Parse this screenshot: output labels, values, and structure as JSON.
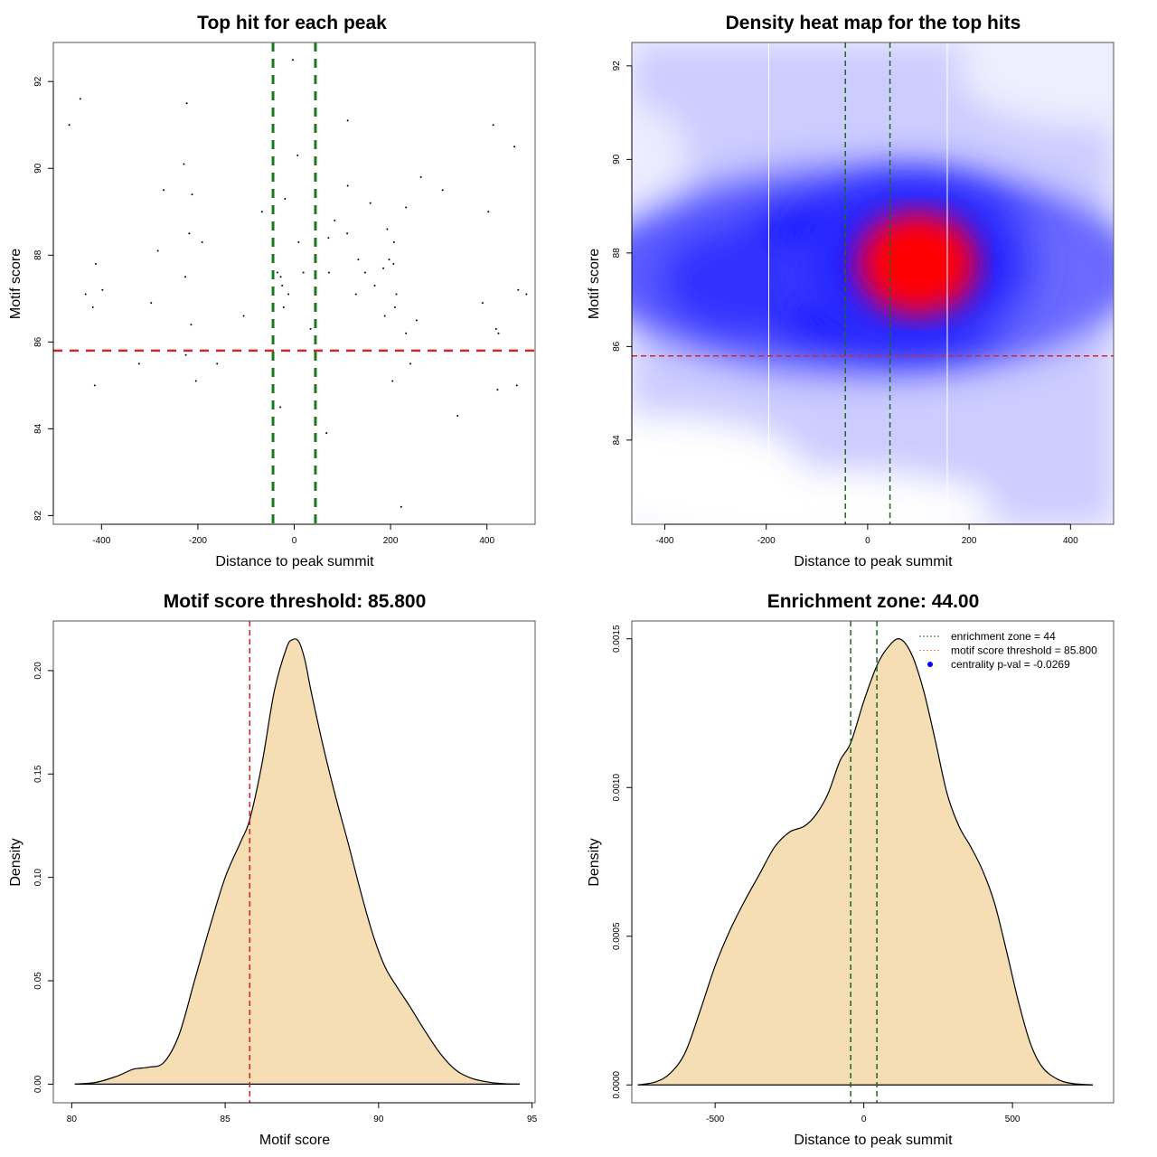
{
  "chart_data": [
    {
      "id": "scatter",
      "type": "scatter",
      "title": "Top hit for each peak",
      "xlabel": "Distance to peak summit",
      "ylabel": "Motif score",
      "xlim": [
        -500,
        500
      ],
      "ylim": [
        81.8,
        92.9
      ],
      "xticks": [
        -400,
        -200,
        0,
        200,
        400
      ],
      "xtick_labels": [
        "-400",
        "-200",
        "0",
        "200",
        "400"
      ],
      "yticks": [
        82,
        84,
        86,
        88,
        90,
        92
      ],
      "ytick_labels": [
        "82",
        "84",
        "86",
        "88",
        "90",
        "92"
      ],
      "vlines": [
        -44,
        44
      ],
      "vline_color": "#1a7a1a",
      "hline": 85.8,
      "hline_color": "#d62728",
      "points": [
        [
          -467,
          91.0
        ],
        [
          -444,
          91.6
        ],
        [
          -433,
          87.1
        ],
        [
          -418,
          86.8
        ],
        [
          -414,
          85.0
        ],
        [
          -412,
          87.8
        ],
        [
          -398,
          87.2
        ],
        [
          -322,
          85.5
        ],
        [
          -297,
          86.9
        ],
        [
          -283,
          88.1
        ],
        [
          -271,
          89.5
        ],
        [
          -229,
          90.1
        ],
        [
          -226,
          87.5
        ],
        [
          -225,
          85.7
        ],
        [
          -223,
          91.5
        ],
        [
          -218,
          88.5
        ],
        [
          -214,
          86.4
        ],
        [
          -212,
          89.4
        ],
        [
          -204,
          85.1
        ],
        [
          -191,
          88.3
        ],
        [
          -160,
          85.5
        ],
        [
          -105,
          86.6
        ],
        [
          -67,
          89.0
        ],
        [
          -3,
          92.5
        ],
        [
          7,
          90.3
        ],
        [
          9,
          88.3
        ],
        [
          19,
          87.6
        ],
        [
          -35,
          87.6
        ],
        [
          -28,
          87.5
        ],
        [
          -25,
          87.3
        ],
        [
          -22,
          86.8
        ],
        [
          -19,
          89.3
        ],
        [
          -12,
          87.1
        ],
        [
          -29,
          84.5
        ],
        [
          34,
          86.3
        ],
        [
          67,
          83.9
        ],
        [
          72,
          87.6
        ],
        [
          71,
          88.4
        ],
        [
          84,
          88.8
        ],
        [
          110,
          88.5
        ],
        [
          111,
          91.1
        ],
        [
          111,
          89.6
        ],
        [
          128,
          87.1
        ],
        [
          133,
          87.9
        ],
        [
          147,
          87.6
        ],
        [
          158,
          89.2
        ],
        [
          167,
          87.3
        ],
        [
          185,
          87.7
        ],
        [
          188,
          86.6
        ],
        [
          193,
          88.6
        ],
        [
          197,
          87.9
        ],
        [
          204,
          85.1
        ],
        [
          206,
          87.8
        ],
        [
          207,
          88.3
        ],
        [
          209,
          86.8
        ],
        [
          212,
          87.1
        ],
        [
          222,
          82.2
        ],
        [
          232,
          86.2
        ],
        [
          232,
          89.1
        ],
        [
          241,
          85.5
        ],
        [
          254,
          86.5
        ],
        [
          263,
          89.8
        ],
        [
          308,
          89.5
        ],
        [
          339,
          84.3
        ],
        [
          391,
          86.9
        ],
        [
          403,
          89.0
        ],
        [
          413,
          91.0
        ],
        [
          419,
          86.3
        ],
        [
          422,
          84.9
        ],
        [
          424,
          86.2
        ],
        [
          457,
          90.5
        ],
        [
          462,
          85.0
        ],
        [
          465,
          87.2
        ],
        [
          482,
          87.1
        ]
      ]
    },
    {
      "id": "heatmap",
      "type": "heatmap",
      "title": "Density heat map for the top hits",
      "xlabel": "Distance to peak summit",
      "ylabel": "Motif score",
      "xlim": [
        -465,
        485
      ],
      "ylim": [
        82.2,
        92.5
      ],
      "xticks": [
        -400,
        -200,
        0,
        200,
        400
      ],
      "xtick_labels": [
        "-400",
        "-200",
        "0",
        "200",
        "400"
      ],
      "yticks": [
        84,
        86,
        88,
        90,
        92
      ],
      "ytick_labels": [
        "84",
        "86",
        "88",
        "90",
        "92"
      ],
      "color_scale": [
        "#ffffff",
        "#0000ff",
        "#ff0000"
      ],
      "density_peak": {
        "x": 110,
        "y": 87.7
      },
      "white_vlines": [
        -195,
        157
      ],
      "vlines": [
        -44,
        44
      ],
      "vline_color": "#1a6a1a",
      "hline": 85.8,
      "hline_color": "#d62728"
    },
    {
      "id": "score-density",
      "type": "area",
      "title": "Motif score threshold: 85.800",
      "xlabel": "Motif score",
      "ylabel": "Density",
      "xlim": [
        79.4,
        95.1
      ],
      "ylim": [
        -0.009,
        0.224
      ],
      "xticks": [
        80,
        85,
        90,
        95
      ],
      "xtick_labels": [
        "80",
        "85",
        "90",
        "95"
      ],
      "yticks": [
        0,
        0.05,
        0.1,
        0.15,
        0.2
      ],
      "ytick_labels": [
        "0.00",
        "0.05",
        "0.10",
        "0.15",
        "0.20"
      ],
      "fill_color": "#f5deb3",
      "vline": 85.8,
      "vline_color": "#e41a1c",
      "x": [
        80.1,
        80.8,
        81.5,
        82.0,
        82.5,
        83.0,
        83.5,
        84.0,
        84.5,
        85.0,
        85.5,
        85.8,
        86.2,
        86.6,
        87.0,
        87.2,
        87.4,
        87.6,
        87.8,
        88.2,
        88.6,
        89.0,
        89.4,
        89.8,
        90.2,
        90.6,
        91.0,
        91.5,
        92.0,
        92.5,
        93.0,
        93.5,
        94.0,
        94.6
      ],
      "y": [
        0.0,
        0.0009,
        0.004,
        0.0072,
        0.0082,
        0.0105,
        0.024,
        0.05,
        0.076,
        0.1,
        0.117,
        0.128,
        0.155,
        0.19,
        0.211,
        0.215,
        0.214,
        0.205,
        0.19,
        0.163,
        0.139,
        0.117,
        0.094,
        0.073,
        0.057,
        0.047,
        0.038,
        0.026,
        0.015,
        0.007,
        0.003,
        0.0012,
        0.0003,
        0.0
      ]
    },
    {
      "id": "distance-density",
      "type": "area",
      "title": "Enrichment zone: 44.00",
      "xlabel": "Distance to peak summit",
      "ylabel": "Density",
      "xlim": [
        -780,
        840
      ],
      "ylim": [
        -6e-05,
        0.00156
      ],
      "xticks": [
        -500,
        0,
        500
      ],
      "xtick_labels": [
        "-500",
        "0",
        "500"
      ],
      "yticks": [
        0,
        0.0005,
        0.001,
        0.0015
      ],
      "ytick_labels": [
        "0.0000",
        "0.0005",
        "0.0010",
        "0.0015"
      ],
      "fill_color": "#f5deb3",
      "vlines": [
        -44,
        44
      ],
      "vline_color": "#1a6a1a",
      "x": [
        -760,
        -700,
        -650,
        -600,
        -550,
        -500,
        -450,
        -400,
        -350,
        -300,
        -250,
        -200,
        -160,
        -120,
        -80,
        -44,
        0,
        44,
        80,
        120,
        160,
        200,
        240,
        280,
        320,
        360,
        400,
        440,
        480,
        520,
        560,
        600,
        650,
        700,
        770
      ],
      "y": [
        0.0,
        1e-05,
        4e-05,
        0.00011,
        0.00025,
        0.0004,
        0.00052,
        0.00062,
        0.00071,
        0.0008,
        0.00085,
        0.00087,
        0.00091,
        0.00098,
        0.00109,
        0.00115,
        0.00129,
        0.00141,
        0.00147,
        0.0015,
        0.00145,
        0.00133,
        0.00116,
        0.00098,
        0.00087,
        0.0008,
        0.00072,
        0.00061,
        0.00045,
        0.00028,
        0.00014,
        6e-05,
        2e-05,
        5e-06,
        0.0
      ],
      "legend": {
        "position": "top-right",
        "items": [
          {
            "label": "enrichment zone = 44",
            "style": "dotted-line",
            "color": "#1a7a1a"
          },
          {
            "label": "motif score threshold = 85.800",
            "style": "dotted-line",
            "color": "#f08080"
          },
          {
            "label": "centrality p-val = -0.0269",
            "style": "dot",
            "color": "#0000ff"
          }
        ]
      }
    }
  ]
}
